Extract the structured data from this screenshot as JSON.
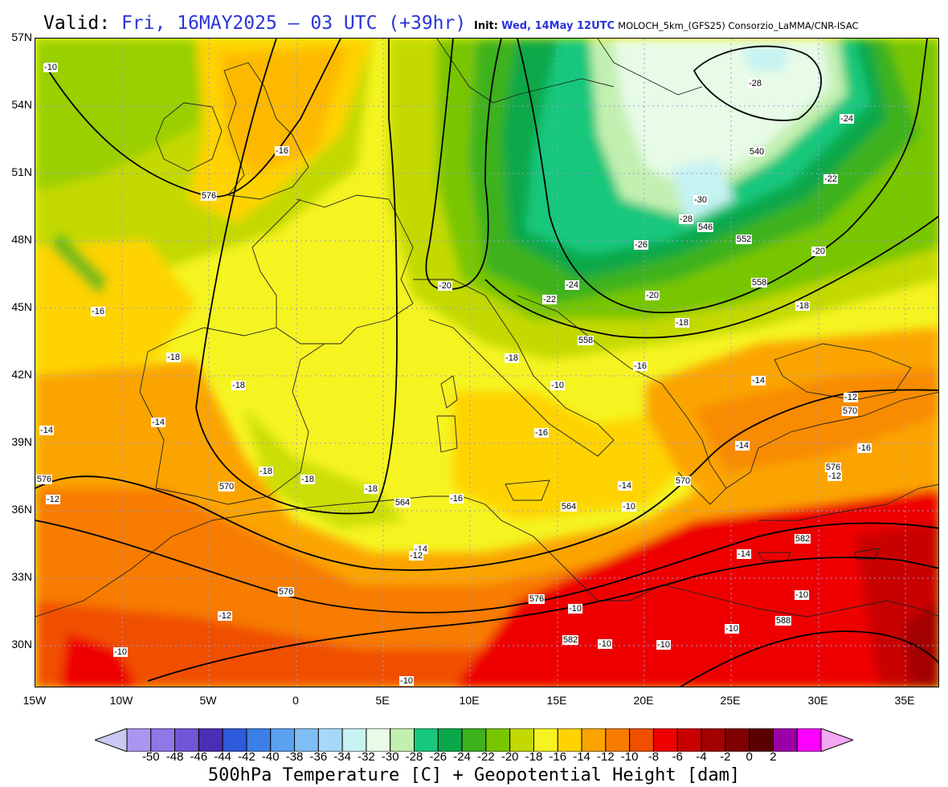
{
  "header": {
    "valid_label": "Valid:",
    "valid_value": "Fri, 16MAY2025 — 03 UTC (+39hr)",
    "init_label": "Init:",
    "init_value": "Wed, 14May 12UTC",
    "model_credit": "MOLOCH_5km_(GFS25) Consorzio_LaMMA/CNR-ISAC"
  },
  "map": {
    "lat_labels": [
      "57N",
      "54N",
      "51N",
      "48N",
      "45N",
      "42N",
      "39N",
      "36N",
      "33N",
      "30N"
    ],
    "lon_labels": [
      "15W",
      "10W",
      "5W",
      "0",
      "5E",
      "10E",
      "15E",
      "20E",
      "25E",
      "30E",
      "35E"
    ],
    "temperature_contour_labels": [
      "-28",
      "-24",
      "-16",
      "-22",
      "-30",
      "-28",
      "-26",
      "-20",
      "-24",
      "-20",
      "-22",
      "-20",
      "-18",
      "-16",
      "-18",
      "-18",
      "-18",
      "-16",
      "-18",
      "-14",
      "-14",
      "-16",
      "-12",
      "-18",
      "-18",
      "-18",
      "-16",
      "-14",
      "-10",
      "-16",
      "-14",
      "-14",
      "-14",
      "-12",
      "-12",
      "-14",
      "-12",
      "-10",
      "-10",
      "-10",
      "-10",
      "-10",
      "-10",
      "-10",
      "-12",
      "-10",
      "-10"
    ],
    "height_contour_labels": [
      "576",
      "576",
      "540",
      "546",
      "552",
      "558",
      "558",
      "564",
      "570",
      "576",
      "570",
      "564",
      "570",
      "576",
      "576",
      "582",
      "582",
      "588"
    ],
    "colors": {
      "land_outline": "#222222",
      "contour": "#000000",
      "grid": "#9b9bd8"
    }
  },
  "colorbar": {
    "tick_labels": [
      "-50",
      "-48",
      "-46",
      "-44",
      "-42",
      "-40",
      "-38",
      "-36",
      "-34",
      "-32",
      "-30",
      "-28",
      "-26",
      "-24",
      "-22",
      "-20",
      "-18",
      "-16",
      "-14",
      "-12",
      "-10",
      "-8",
      "-6",
      "-4",
      "-2",
      "0",
      "2"
    ],
    "colors": [
      "#c9c9f5",
      "#a996f0",
      "#8d78e6",
      "#6f57d6",
      "#4a2fb4",
      "#2f5ad9",
      "#3b7fe6",
      "#5aa1f0",
      "#7fbdf5",
      "#a6d9f8",
      "#c6f2f2",
      "#e7fbe7",
      "#c2f0b0",
      "#17c77c",
      "#0aa84a",
      "#3cb21d",
      "#78c600",
      "#c3d900",
      "#f5f421",
      "#fed300",
      "#fba400",
      "#f77c00",
      "#f04f00",
      "#ee0000",
      "#c90000",
      "#a30000",
      "#800000",
      "#5a0000",
      "#9b00a8",
      "#ff00ff",
      "#f2a8f2"
    ],
    "title": "500hPa Temperature [C] + Geopotential Height [dam]"
  }
}
